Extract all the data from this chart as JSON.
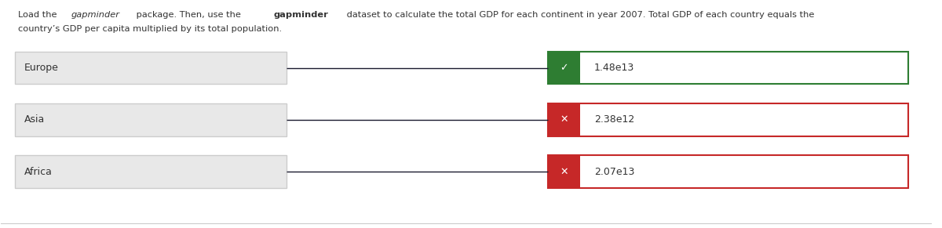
{
  "title_text": "Load the gapminder package. Then, use the gapminder dataset to calculate the total GDP for each continent in year 2007. Total GDP of each country equals the\ncountry’s GDP per capita multiplied by its total population.",
  "rows": [
    {
      "label": "Europe",
      "value": "1.48e13",
      "correct": true
    },
    {
      "label": "Asia",
      "value": "2.38e12",
      "correct": false
    },
    {
      "label": "Africa",
      "value": "2.07e13",
      "correct": false
    }
  ],
  "bg_color": "#ffffff",
  "text_color": "#333333",
  "input_box_color": "#e8e8e8",
  "input_box_border": "#cccccc",
  "correct_color": "#2e7d32",
  "correct_border": "#2e7d32",
  "wrong_color": "#c62828",
  "wrong_border": "#c62828",
  "result_box_bg": "#ffffff"
}
